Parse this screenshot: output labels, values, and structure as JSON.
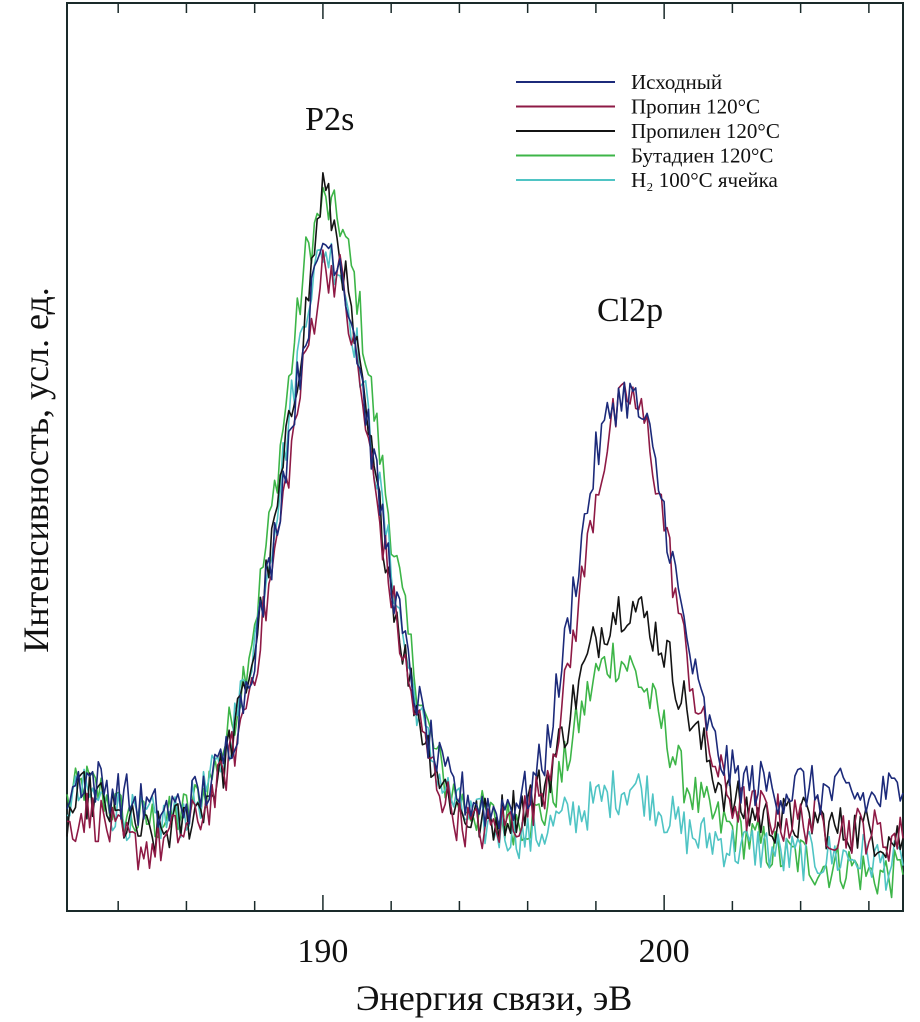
{
  "chart_data": {
    "type": "line",
    "title": "",
    "xlabel": "Энергия связи, эВ",
    "ylabel": "Интенсивность, усл. ед.",
    "xlim": [
      182.5,
      207.0
    ],
    "ylim": [
      0,
      100
    ],
    "x_major_ticks": [
      190,
      200
    ],
    "x_minor_ticks": [
      184,
      186,
      188,
      192,
      194,
      196,
      198,
      202,
      204,
      206
    ],
    "x_tick_labels": [
      "190",
      "200"
    ],
    "y_ticks_shown": false,
    "grid": false,
    "legend_position": "top-right",
    "annotations": [
      {
        "text": "P2s",
        "x": 190.2,
        "y": 86
      },
      {
        "text": "Cl2p",
        "x": 199.0,
        "y": 65
      }
    ],
    "x": [
      182.5,
      183.0,
      183.5,
      184.0,
      184.5,
      185.0,
      185.5,
      186.0,
      186.5,
      187.0,
      187.5,
      188.0,
      188.5,
      189.0,
      189.5,
      190.0,
      190.5,
      191.0,
      191.5,
      192.0,
      192.5,
      193.0,
      193.5,
      194.0,
      194.5,
      195.0,
      195.5,
      196.0,
      196.5,
      197.0,
      197.5,
      198.0,
      198.5,
      199.0,
      199.5,
      200.0,
      200.5,
      201.0,
      201.5,
      202.0,
      202.5,
      203.0,
      203.5,
      204.0,
      204.5,
      205.0,
      205.5,
      206.0,
      206.5,
      207.0
    ],
    "series": [
      {
        "name": "Исходный",
        "color": "#1c2a7a",
        "values": [
          13,
          15,
          14,
          13,
          12,
          11,
          11,
          12,
          13,
          16,
          21,
          29,
          39,
          52,
          64,
          74,
          72,
          62,
          49,
          37,
          27,
          20,
          15,
          13,
          12,
          11,
          12,
          13,
          17,
          27,
          39,
          50,
          56,
          57,
          53,
          44,
          33,
          24,
          18,
          15,
          14,
          14,
          13,
          14,
          13,
          13,
          13,
          12,
          13,
          13
        ]
      },
      {
        "name": "Пропин 120°C",
        "color": "#8e1a45",
        "values": [
          9,
          11,
          10,
          8,
          7,
          7,
          8,
          9,
          11,
          14,
          19,
          27,
          37,
          49,
          61,
          71,
          70,
          60,
          47,
          35,
          25,
          18,
          13,
          10,
          9,
          9,
          10,
          11,
          14,
          22,
          34,
          46,
          54,
          57,
          53,
          43,
          31,
          22,
          16,
          12,
          11,
          11,
          10,
          10,
          10,
          9,
          9,
          9,
          8,
          8
        ]
      },
      {
        "name": "Пропилен 120°C",
        "color": "#141414",
        "values": [
          10,
          13,
          12,
          10,
          9,
          8,
          9,
          10,
          12,
          15,
          21,
          29,
          40,
          53,
          66,
          80,
          73,
          61,
          48,
          36,
          26,
          19,
          14,
          11,
          10,
          10,
          11,
          12,
          14,
          19,
          25,
          30,
          33,
          34,
          32,
          29,
          24,
          19,
          15,
          12,
          11,
          10,
          10,
          10,
          10,
          9,
          9,
          9,
          8,
          8
        ]
      },
      {
        "name": "Бутадиен 120°C",
        "color": "#3db548",
        "values": [
          12,
          14,
          13,
          11,
          10,
          10,
          10,
          11,
          13,
          17,
          23,
          32,
          44,
          58,
          72,
          78,
          76,
          68,
          55,
          42,
          30,
          21,
          15,
          12,
          11,
          10,
          10,
          10,
          11,
          15,
          21,
          26,
          28,
          27,
          24,
          20,
          15,
          12,
          10,
          9,
          8,
          7,
          6,
          6,
          5,
          5,
          5,
          4,
          4,
          4
        ]
      },
      {
        "name": "H₂ 100°C ячейка",
        "color": "#4fc4c4",
        "values": [
          12,
          13,
          12,
          11,
          10,
          10,
          10,
          11,
          13,
          16,
          22,
          30,
          41,
          54,
          67,
          73,
          71,
          62,
          50,
          38,
          27,
          19,
          14,
          11,
          10,
          9,
          9,
          8,
          9,
          10,
          11,
          12,
          13,
          14,
          13,
          11,
          9,
          8,
          8,
          7,
          7,
          7,
          6,
          6,
          6,
          6,
          6,
          6,
          5,
          5
        ]
      }
    ]
  }
}
